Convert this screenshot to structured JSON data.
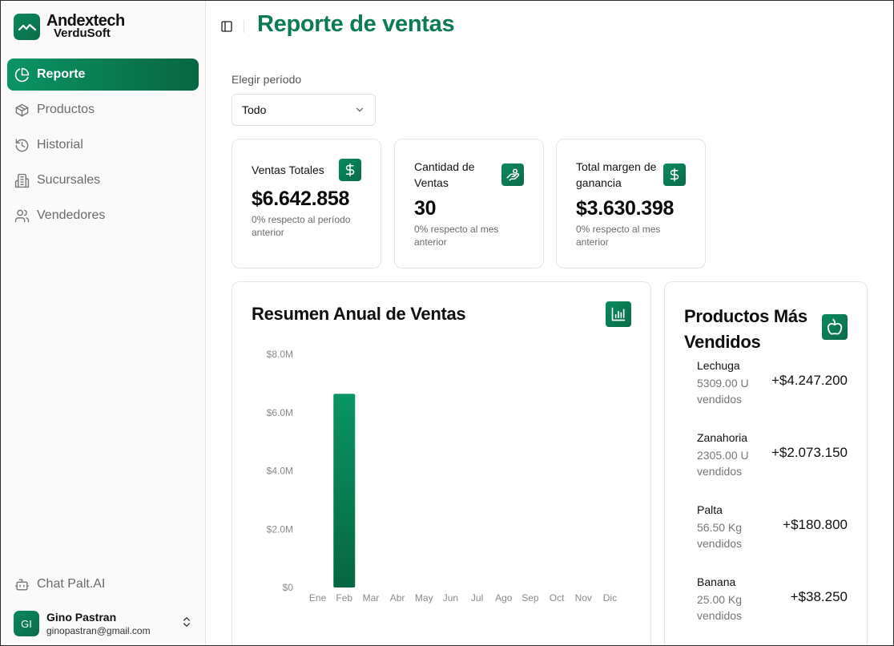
{
  "brand": {
    "name": "Andextech",
    "sub": "VerduSoft"
  },
  "nav": [
    {
      "label": "Reporte",
      "icon": "pie-chart-icon",
      "active": true
    },
    {
      "label": "Productos",
      "icon": "box-icon",
      "active": false
    },
    {
      "label": "Historial",
      "icon": "history-icon",
      "active": false
    },
    {
      "label": "Sucursales",
      "icon": "building-icon",
      "active": false
    },
    {
      "label": "Vendedores",
      "icon": "users-icon",
      "active": false
    }
  ],
  "chat": {
    "label": "Chat Palt.AI",
    "icon": "bot-icon"
  },
  "user": {
    "initials": "GI",
    "name": "Gino Pastran",
    "email": "ginopastran@gmail.com"
  },
  "header": {
    "title": "Reporte de ventas"
  },
  "period": {
    "label": "Elegir período",
    "value": "Todo"
  },
  "stats": [
    {
      "title": "Ventas Totales",
      "value": "$6.642.858",
      "sub": "0% respecto al período anterior",
      "icon": "dollar-icon"
    },
    {
      "title": "Cantidad de Ventas",
      "value": "30",
      "sub": "0% respecto al mes anterior",
      "icon": "hand-coins-icon"
    },
    {
      "title": "Total margen de ganancia",
      "value": "$3.630.398",
      "sub": "0% respecto al mes anterior",
      "icon": "dollar-icon"
    }
  ],
  "chart_data": {
    "type": "bar",
    "title": "Resumen Anual de Ventas",
    "categories": [
      "Ene",
      "Feb",
      "Mar",
      "Abr",
      "May",
      "Jun",
      "Jul",
      "Ago",
      "Sep",
      "Oct",
      "Nov",
      "Dic"
    ],
    "values": [
      0,
      6642858,
      0,
      0,
      0,
      0,
      0,
      0,
      0,
      0,
      0,
      0
    ],
    "ylim": [
      0,
      8000000
    ],
    "yticks": [
      0,
      2000000,
      4000000,
      6000000,
      8000000
    ],
    "ytick_labels": [
      "$0",
      "$2.0M",
      "$4.0M",
      "$6.0M",
      "$8.0M"
    ],
    "xlabel": "",
    "ylabel": "",
    "grid": false
  },
  "top_products": {
    "title": "Productos Más Vendidos",
    "items": [
      {
        "name": "Lechuga",
        "qty": "5309.00 U vendidos",
        "amount": "+$4.247.200"
      },
      {
        "name": "Zanahoria",
        "qty": "2305.00 U vendidos",
        "amount": "+$2.073.150"
      },
      {
        "name": "Palta",
        "qty": "56.50 Kg vendidos",
        "amount": "+$180.800"
      },
      {
        "name": "Banana",
        "qty": "25.00 Kg vendidos",
        "amount": "+$38.250"
      }
    ]
  },
  "colors": {
    "accent": "#0b7a55",
    "accent_light": "#0b9464",
    "accent_dark": "#076642"
  }
}
